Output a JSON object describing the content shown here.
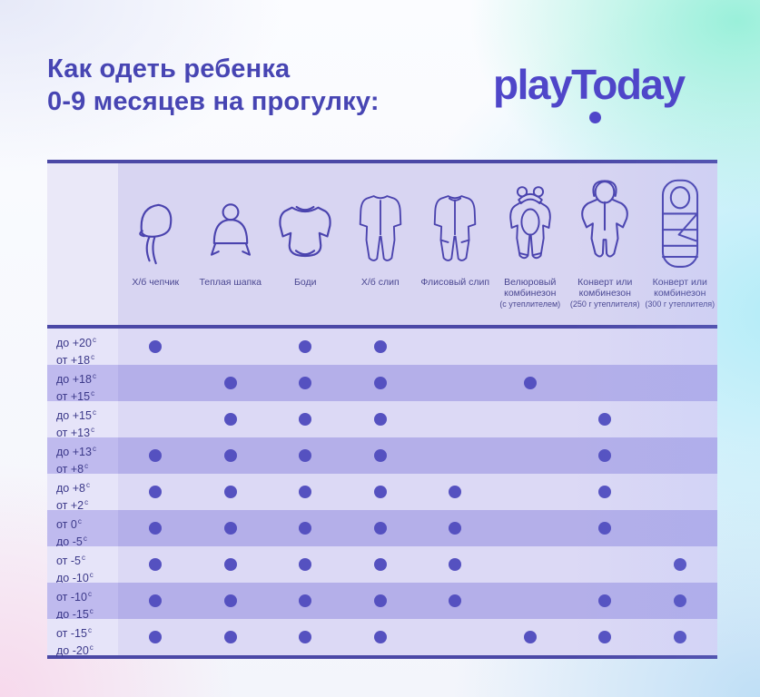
{
  "page": {
    "title_line1": "Как одеть ребенка",
    "title_line2": "0-9 месяцев на прогулку:",
    "logo_text": "playToday"
  },
  "colors": {
    "title_text": "#4745b3",
    "logo": "#4f46c9",
    "header_label": "#4a4791",
    "temp_label": "#3b3889",
    "dot": "#5551c0",
    "border": "#4b48a6",
    "icon_stroke": "#4a43ae",
    "header_bg": "#d8d5f2",
    "header_left_bg": "#eae8f8",
    "row_odd": "#dcd9f5",
    "row_even": "#b4afe9",
    "row_odd_label": "#e6e4f9",
    "row_even_label": "#bfbaee"
  },
  "table": {
    "columns": [
      {
        "label": "Х/б чепчик",
        "sublabel": "",
        "icon": "bonnet-icon"
      },
      {
        "label": "Теплая шапка",
        "sublabel": "",
        "icon": "warm-hat-icon"
      },
      {
        "label": "Боди",
        "sublabel": "",
        "icon": "bodysuit-icon"
      },
      {
        "label": "Х/б слип",
        "sublabel": "",
        "icon": "sleepsuit-icon"
      },
      {
        "label": "Флисовый слип",
        "sublabel": "",
        "icon": "fleece-sleepsuit-icon"
      },
      {
        "label": "Велюровый комбинезон",
        "sublabel": "(с утеплителем)",
        "icon": "velour-overall-icon"
      },
      {
        "label": "Конверт или комбинезон",
        "sublabel": "(250 г утеплителя)",
        "icon": "snowsuit-icon"
      },
      {
        "label": "Конверт или комбинезон",
        "sublabel": "(300 г утеплителя)",
        "icon": "envelope-icon"
      }
    ],
    "rows": [
      {
        "temp_line1": "до +20",
        "temp_line2": "от +18",
        "sup": "с",
        "dots": [
          1,
          0,
          1,
          1,
          0,
          0,
          0,
          0
        ]
      },
      {
        "temp_line1": "до +18",
        "temp_line2": "от +15",
        "sup": "с",
        "dots": [
          0,
          1,
          1,
          1,
          0,
          1,
          0,
          0
        ]
      },
      {
        "temp_line1": "до +15",
        "temp_line2": "от +13",
        "sup": "с",
        "dots": [
          0,
          1,
          1,
          1,
          0,
          0,
          1,
          0
        ]
      },
      {
        "temp_line1": "до +13",
        "temp_line2": "от +8",
        "sup": "с",
        "dots": [
          1,
          1,
          1,
          1,
          0,
          0,
          1,
          0
        ]
      },
      {
        "temp_line1": "до +8",
        "temp_line2": "от +2",
        "sup": "с",
        "dots": [
          1,
          1,
          1,
          1,
          1,
          0,
          1,
          0
        ]
      },
      {
        "temp_line1": "от 0",
        "temp_line2": "до -5",
        "sup": "с",
        "dots": [
          1,
          1,
          1,
          1,
          1,
          0,
          1,
          0
        ]
      },
      {
        "temp_line1": "от -5",
        "temp_line2": "до -10",
        "sup": "с",
        "dots": [
          1,
          1,
          1,
          1,
          1,
          0,
          0,
          1
        ]
      },
      {
        "temp_line1": "от -10",
        "temp_line2": "до -15",
        "sup": "с",
        "dots": [
          1,
          1,
          1,
          1,
          1,
          0,
          1,
          1
        ]
      },
      {
        "temp_line1": "от -15",
        "temp_line2": "до -20",
        "sup": "с",
        "dots": [
          1,
          1,
          1,
          1,
          0,
          1,
          1,
          1
        ]
      }
    ]
  },
  "chart_data": {
    "type": "table",
    "title": "Как одеть ребенка 0-9 месяцев на прогулку:",
    "columns": [
      "Х/б чепчик",
      "Теплая шапка",
      "Боди",
      "Х/б слип",
      "Флисовый слип",
      "Велюровый комбинезон (с утеплителем)",
      "Конверт или комбинезон (250 г утеплителя)",
      "Конверт или комбинезон (300 г утеплителя)"
    ],
    "rows": [
      "до +20с от +18с",
      "до +18с от +15с",
      "до +15с от +13с",
      "до +13с от +8с",
      "до +8с от +2с",
      "от 0с до -5с",
      "от -5с до -10с",
      "от -10с до -15с",
      "от -15с до -20с"
    ],
    "matrix": [
      [
        1,
        0,
        1,
        1,
        0,
        0,
        0,
        0
      ],
      [
        0,
        1,
        1,
        1,
        0,
        1,
        0,
        0
      ],
      [
        0,
        1,
        1,
        1,
        0,
        0,
        1,
        0
      ],
      [
        1,
        1,
        1,
        1,
        0,
        0,
        1,
        0
      ],
      [
        1,
        1,
        1,
        1,
        1,
        0,
        1,
        0
      ],
      [
        1,
        1,
        1,
        1,
        1,
        0,
        1,
        0
      ],
      [
        1,
        1,
        1,
        1,
        1,
        0,
        0,
        1
      ],
      [
        1,
        1,
        1,
        1,
        1,
        0,
        1,
        1
      ],
      [
        1,
        1,
        1,
        1,
        0,
        1,
        1,
        1
      ]
    ],
    "legend_position": "none",
    "grid": false
  }
}
